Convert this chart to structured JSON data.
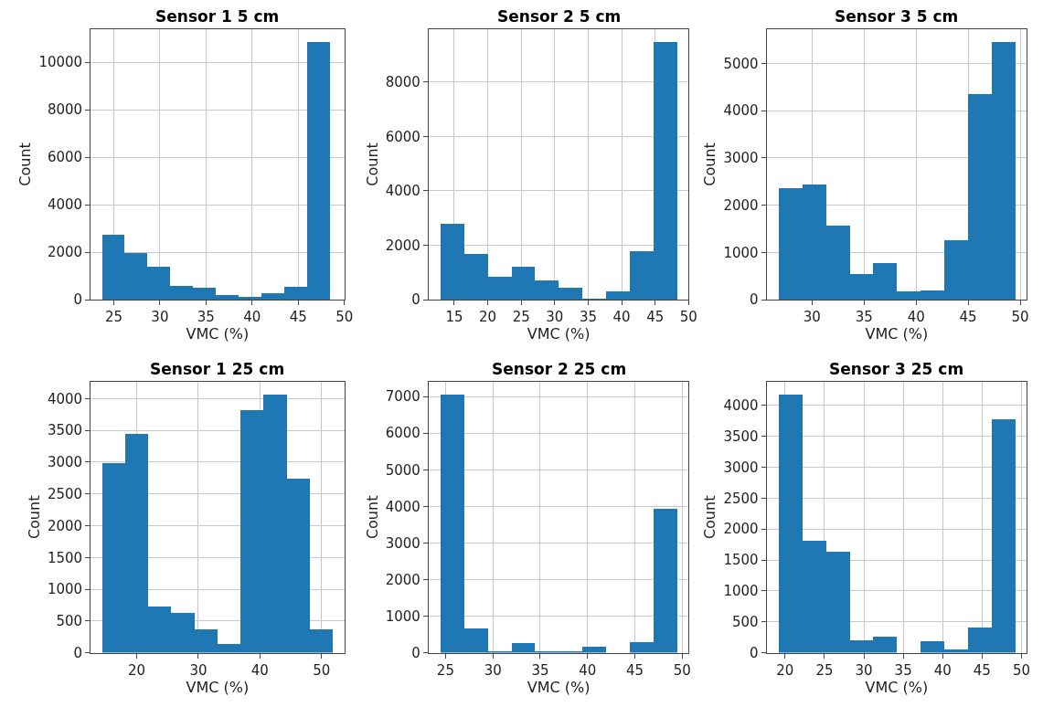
{
  "chart_data": [
    {
      "type": "histogram",
      "title": "Sensor 1 5 cm",
      "xlabel": "VMC (%)",
      "ylabel": "Count",
      "color": "#1f77b4",
      "grid": true,
      "bins": [
        23.73,
        26.2,
        28.68,
        31.15,
        33.63,
        36.1,
        38.58,
        41.05,
        43.53,
        46.0,
        48.48
      ],
      "values": [
        2750,
        1970,
        1400,
        600,
        520,
        220,
        130,
        300,
        560,
        10850
      ],
      "xlim": [
        22.49,
        50.0
      ],
      "ylim": [
        0,
        11400
      ],
      "xticks": [
        25,
        30,
        35,
        40,
        45,
        50
      ],
      "yticks": [
        0,
        2000,
        4000,
        6000,
        8000,
        10000
      ]
    },
    {
      "type": "histogram",
      "title": "Sensor 2 5 cm",
      "xlabel": "VMC (%)",
      "ylabel": "Count",
      "color": "#1f77b4",
      "grid": true,
      "bins": [
        12.93,
        16.46,
        19.99,
        23.52,
        27.05,
        30.59,
        34.12,
        37.65,
        41.18,
        44.71,
        48.24
      ],
      "values": [
        2800,
        1700,
        850,
        1230,
        730,
        470,
        30,
        310,
        1800,
        9480
      ],
      "xlim": [
        11.16,
        50.0
      ],
      "ylim": [
        0,
        9950
      ],
      "xticks": [
        15,
        20,
        25,
        30,
        35,
        40,
        45,
        50
      ],
      "yticks": [
        0,
        2000,
        4000,
        6000,
        8000
      ]
    },
    {
      "type": "histogram",
      "title": "Sensor 3 5 cm",
      "xlabel": "VMC (%)",
      "ylabel": "Count",
      "color": "#1f77b4",
      "grid": true,
      "bins": [
        26.77,
        29.04,
        31.31,
        33.58,
        35.85,
        38.13,
        40.4,
        42.67,
        44.94,
        47.21,
        49.48
      ],
      "values": [
        2370,
        2440,
        1580,
        560,
        780,
        190,
        210,
        1270,
        4360,
        5460
      ],
      "xlim": [
        25.63,
        50.62
      ],
      "ylim": [
        0,
        5730
      ],
      "xticks": [
        30,
        35,
        40,
        45,
        50
      ],
      "yticks": [
        0,
        1000,
        2000,
        3000,
        4000,
        5000
      ]
    },
    {
      "type": "histogram",
      "title": "Sensor 1 25 cm",
      "xlabel": "VMC (%)",
      "ylabel": "Count",
      "color": "#1f77b4",
      "grid": true,
      "bins": [
        14.4,
        18.14,
        21.88,
        25.63,
        29.37,
        33.11,
        36.85,
        40.59,
        44.34,
        48.08,
        51.82
      ],
      "values": [
        2990,
        3440,
        720,
        620,
        370,
        130,
        3820,
        4060,
        2740,
        370
      ],
      "xlim": [
        12.53,
        53.69
      ],
      "ylim": [
        0,
        4263
      ],
      "xticks": [
        20,
        30,
        40,
        50
      ],
      "yticks": [
        0,
        500,
        1000,
        1500,
        2000,
        2500,
        3000,
        3500,
        4000
      ]
    },
    {
      "type": "histogram",
      "title": "Sensor 2 25 cm",
      "xlabel": "VMC (%)",
      "ylabel": "Count",
      "color": "#1f77b4",
      "grid": true,
      "bins": [
        24.46,
        26.96,
        29.45,
        31.95,
        34.45,
        36.95,
        39.44,
        41.94,
        44.44,
        46.93,
        49.43
      ],
      "values": [
        7050,
        660,
        50,
        250,
        50,
        20,
        170,
        0,
        280,
        3940
      ],
      "xlim": [
        23.21,
        50.68
      ],
      "ylim": [
        0,
        7400
      ],
      "xticks": [
        25,
        30,
        35,
        40,
        45,
        50
      ],
      "yticks": [
        0,
        1000,
        2000,
        3000,
        4000,
        5000,
        6000,
        7000
      ]
    },
    {
      "type": "histogram",
      "title": "Sensor 3 25 cm",
      "xlabel": "VMC (%)",
      "ylabel": "Count",
      "color": "#1f77b4",
      "grid": true,
      "bins": [
        19.15,
        22.15,
        25.15,
        28.15,
        31.15,
        34.15,
        37.15,
        40.15,
        43.15,
        46.15,
        49.15
      ],
      "values": [
        4170,
        1810,
        1630,
        200,
        260,
        0,
        180,
        50,
        400,
        3780
      ],
      "xlim": [
        17.65,
        50.65
      ],
      "ylim": [
        0,
        4380
      ],
      "xticks": [
        20,
        25,
        30,
        35,
        40,
        45,
        50
      ],
      "yticks": [
        0,
        500,
        1000,
        1500,
        2000,
        2500,
        3000,
        3500,
        4000
      ]
    }
  ]
}
